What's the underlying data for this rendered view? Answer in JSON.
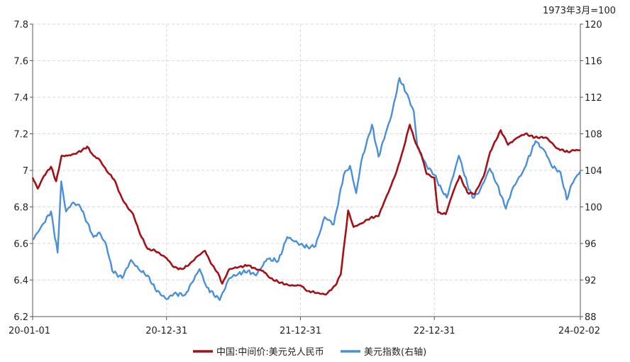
{
  "chart_data": {
    "type": "line",
    "unit_note": "1973年3月=100",
    "x_ticks": [
      "20-01-01",
      "20-12-31",
      "21-12-31",
      "22-12-31",
      "24-02-02"
    ],
    "y_left": {
      "range": [
        6.2,
        7.8
      ],
      "ticks": [
        "6.2",
        "6.4",
        "6.6",
        "6.8",
        "7",
        "7.2",
        "7.4",
        "7.6",
        "7.8"
      ]
    },
    "y_right": {
      "range": [
        88,
        120
      ],
      "ticks": [
        "88",
        "92",
        "96",
        "100",
        "104",
        "108",
        "112",
        "116",
        "120"
      ]
    },
    "grid": true,
    "legend_position": "bottom",
    "series": [
      {
        "name": "中国:中间价:美元兑人民币",
        "axis": "left",
        "color": "#a50f15",
        "points": [
          [
            "2020-01-01",
            6.96
          ],
          [
            "2020-01-15",
            6.9
          ],
          [
            "2020-02-01",
            6.97
          ],
          [
            "2020-02-20",
            7.02
          ],
          [
            "2020-03-05",
            6.94
          ],
          [
            "2020-03-20",
            7.08
          ],
          [
            "2020-04-05",
            7.08
          ],
          [
            "2020-04-25",
            7.09
          ],
          [
            "2020-05-15",
            7.11
          ],
          [
            "2020-05-29",
            7.13
          ],
          [
            "2020-06-15",
            7.08
          ],
          [
            "2020-07-01",
            7.06
          ],
          [
            "2020-07-20",
            7.0
          ],
          [
            "2020-08-10",
            6.95
          ],
          [
            "2020-08-31",
            6.85
          ],
          [
            "2020-09-15",
            6.8
          ],
          [
            "2020-10-01",
            6.76
          ],
          [
            "2020-10-20",
            6.65
          ],
          [
            "2020-11-10",
            6.57
          ],
          [
            "2020-11-30",
            6.56
          ],
          [
            "2020-12-31",
            6.52
          ],
          [
            "2021-01-20",
            6.47
          ],
          [
            "2021-02-10",
            6.46
          ],
          [
            "2021-03-01",
            6.48
          ],
          [
            "2021-03-25",
            6.53
          ],
          [
            "2021-04-15",
            6.56
          ],
          [
            "2021-05-01",
            6.49
          ],
          [
            "2021-05-20",
            6.44
          ],
          [
            "2021-06-01",
            6.38
          ],
          [
            "2021-06-20",
            6.46
          ],
          [
            "2021-07-15",
            6.47
          ],
          [
            "2021-08-10",
            6.48
          ],
          [
            "2021-09-01",
            6.46
          ],
          [
            "2021-09-20",
            6.45
          ],
          [
            "2021-10-10",
            6.41
          ],
          [
            "2021-10-31",
            6.39
          ],
          [
            "2021-12-01",
            6.37
          ],
          [
            "2021-12-31",
            6.37
          ],
          [
            "2022-01-20",
            6.34
          ],
          [
            "2022-02-15",
            6.33
          ],
          [
            "2022-03-10",
            6.32
          ],
          [
            "2022-04-05",
            6.37
          ],
          [
            "2022-04-20",
            6.43
          ],
          [
            "2022-05-01",
            6.62
          ],
          [
            "2022-05-10",
            6.78
          ],
          [
            "2022-05-25",
            6.69
          ],
          [
            "2022-06-15",
            6.71
          ],
          [
            "2022-07-10",
            6.74
          ],
          [
            "2022-08-01",
            6.75
          ],
          [
            "2022-08-15",
            6.82
          ],
          [
            "2022-09-01",
            6.9
          ],
          [
            "2022-09-20",
            7.0
          ],
          [
            "2022-10-05",
            7.1
          ],
          [
            "2022-10-25",
            7.25
          ],
          [
            "2022-11-10",
            7.15
          ],
          [
            "2022-11-25",
            7.09
          ],
          [
            "2022-12-10",
            6.98
          ],
          [
            "2022-12-31",
            6.96
          ],
          [
            "2023-01-10",
            6.77
          ],
          [
            "2023-01-31",
            6.76
          ],
          [
            "2023-02-20",
            6.88
          ],
          [
            "2023-03-10",
            6.97
          ],
          [
            "2023-03-31",
            6.88
          ],
          [
            "2023-04-20",
            6.87
          ],
          [
            "2023-05-15",
            6.97
          ],
          [
            "2023-06-01",
            7.1
          ],
          [
            "2023-06-30",
            7.22
          ],
          [
            "2023-07-20",
            7.14
          ],
          [
            "2023-08-15",
            7.18
          ],
          [
            "2023-09-05",
            7.2
          ],
          [
            "2023-10-01",
            7.18
          ],
          [
            "2023-11-01",
            7.18
          ],
          [
            "2023-12-01",
            7.12
          ],
          [
            "2023-12-31",
            7.1
          ],
          [
            "2024-01-15",
            7.11
          ],
          [
            "2024-02-02",
            7.11
          ]
        ]
      },
      {
        "name": "美元指数(右轴)",
        "axis": "right",
        "color": "#4a8fdc",
        "points": [
          [
            "2020-01-01",
            96.4
          ],
          [
            "2020-01-20",
            97.5
          ],
          [
            "2020-02-20",
            99.5
          ],
          [
            "2020-03-09",
            95.0
          ],
          [
            "2020-03-19",
            102.8
          ],
          [
            "2020-04-01",
            99.5
          ],
          [
            "2020-04-20",
            100.5
          ],
          [
            "2020-05-10",
            100.0
          ],
          [
            "2020-05-29",
            98.3
          ],
          [
            "2020-06-15",
            96.7
          ],
          [
            "2020-07-01",
            97.2
          ],
          [
            "2020-07-20",
            95.8
          ],
          [
            "2020-08-05",
            93.0
          ],
          [
            "2020-09-01",
            92.2
          ],
          [
            "2020-09-25",
            94.2
          ],
          [
            "2020-10-20",
            93.0
          ],
          [
            "2020-11-10",
            92.5
          ],
          [
            "2020-11-30",
            91.0
          ],
          [
            "2020-12-31",
            89.9
          ],
          [
            "2021-01-20",
            90.5
          ],
          [
            "2021-02-20",
            90.4
          ],
          [
            "2021-03-31",
            93.2
          ],
          [
            "2021-04-20",
            91.2
          ],
          [
            "2021-05-25",
            89.8
          ],
          [
            "2021-06-20",
            92.2
          ],
          [
            "2021-07-15",
            92.7
          ],
          [
            "2021-08-10",
            93.0
          ],
          [
            "2021-09-01",
            92.5
          ],
          [
            "2021-10-01",
            94.3
          ],
          [
            "2021-11-01",
            94.1
          ],
          [
            "2021-11-25",
            96.7
          ],
          [
            "2021-12-31",
            95.9
          ],
          [
            "2022-01-20",
            95.6
          ],
          [
            "2022-02-10",
            95.7
          ],
          [
            "2022-03-07",
            98.9
          ],
          [
            "2022-04-01",
            98.1
          ],
          [
            "2022-04-28",
            103.5
          ],
          [
            "2022-05-15",
            104.5
          ],
          [
            "2022-06-01",
            101.5
          ],
          [
            "2022-06-15",
            105.0
          ],
          [
            "2022-07-14",
            109.0
          ],
          [
            "2022-08-01",
            105.5
          ],
          [
            "2022-08-20",
            108.0
          ],
          [
            "2022-09-05",
            110.0
          ],
          [
            "2022-09-27",
            114.1
          ],
          [
            "2022-10-15",
            112.5
          ],
          [
            "2022-11-05",
            110.5
          ],
          [
            "2022-11-15",
            106.5
          ],
          [
            "2022-12-10",
            104.5
          ],
          [
            "2022-12-31",
            103.5
          ],
          [
            "2023-01-20",
            101.9
          ],
          [
            "2023-02-03",
            101.0
          ],
          [
            "2023-03-08",
            105.6
          ],
          [
            "2023-03-31",
            102.5
          ],
          [
            "2023-04-14",
            101.0
          ],
          [
            "2023-05-01",
            101.5
          ],
          [
            "2023-05-31",
            104.2
          ],
          [
            "2023-06-20",
            102.5
          ],
          [
            "2023-07-14",
            99.8
          ],
          [
            "2023-08-01",
            102.0
          ],
          [
            "2023-08-31",
            104.0
          ],
          [
            "2023-10-03",
            107.2
          ],
          [
            "2023-10-30",
            106.0
          ],
          [
            "2023-11-15",
            104.5
          ],
          [
            "2023-12-10",
            103.8
          ],
          [
            "2023-12-27",
            100.8
          ],
          [
            "2024-01-10",
            102.5
          ],
          [
            "2024-01-25",
            103.5
          ],
          [
            "2024-02-02",
            103.9
          ]
        ]
      }
    ]
  }
}
